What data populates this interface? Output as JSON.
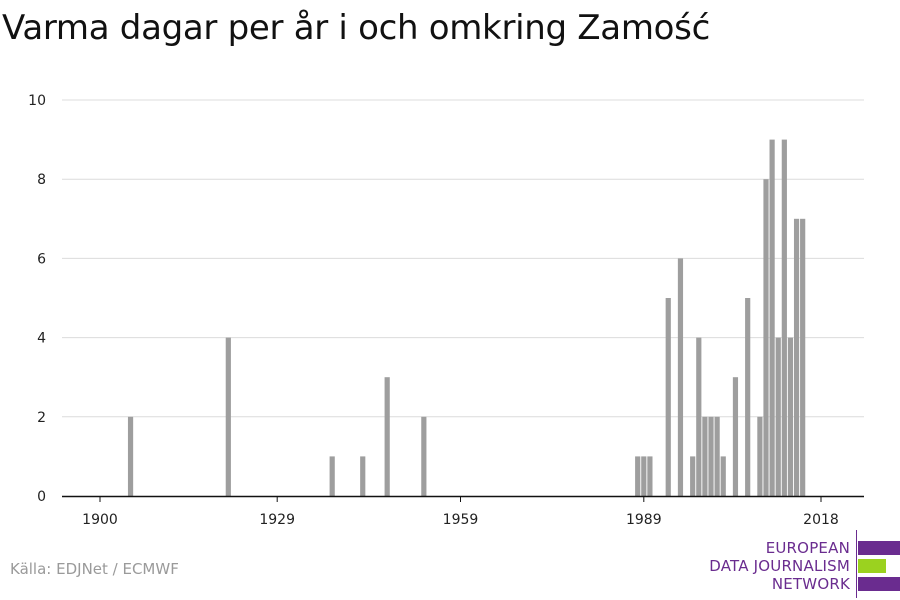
{
  "chart_data": {
    "type": "bar",
    "title": "Varma dagar per år i och omkring Zamość",
    "xlabel": "",
    "ylabel": "",
    "xlim": [
      1900,
      2018
    ],
    "ylim": [
      0,
      10
    ],
    "x_ticks": [
      1900,
      1929,
      1959,
      1989,
      2018
    ],
    "y_ticks": [
      0,
      2,
      4,
      6,
      8,
      10
    ],
    "grid": true,
    "bar_color": "#9e9e9e",
    "x": [
      1905,
      1921,
      1938,
      1943,
      1947,
      1953,
      1988,
      1989,
      1990,
      1993,
      1995,
      1997,
      1998,
      1999,
      2000,
      2001,
      2002,
      2004,
      2006,
      2008,
      2009,
      2010,
      2011,
      2012,
      2013,
      2014,
      2015
    ],
    "values": [
      2,
      4,
      1,
      1,
      3,
      2,
      1,
      1,
      1,
      5,
      6,
      1,
      4,
      2,
      2,
      2,
      1,
      3,
      5,
      2,
      8,
      9,
      4,
      9,
      4,
      7,
      7
    ]
  },
  "source": "Källa: EDJNet / ECMWF",
  "logo": {
    "lines": [
      "EUROPEAN",
      "DATA JOURNALISM",
      "NETWORK"
    ],
    "colors": {
      "purple": "#6a2c8f",
      "green": "#9bd21f"
    }
  }
}
